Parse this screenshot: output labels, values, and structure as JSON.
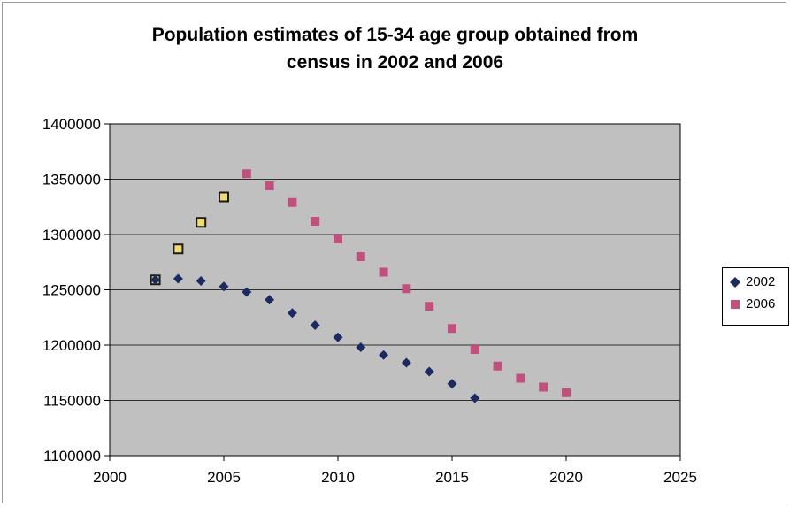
{
  "chart_data": {
    "type": "scatter",
    "title": [
      "Population estimates of 15-34 age group obtained from",
      "census in 2002 and 2006"
    ],
    "xlabel": "",
    "ylabel": "",
    "xlim": [
      2000,
      2025
    ],
    "ylim": [
      1100000,
      1400000
    ],
    "x_ticks": [
      "2000",
      "2005",
      "2010",
      "2015",
      "2020",
      "2025"
    ],
    "y_ticks": [
      "1100000",
      "1150000",
      "1200000",
      "1250000",
      "1300000",
      "1350000",
      "1400000"
    ],
    "grid": "horizontal",
    "plot_background": "#c0c0c0",
    "legend_position": "right",
    "series": [
      {
        "name": "2002",
        "marker": "diamond",
        "color": "#1c2a63",
        "x": [
          2002,
          2003,
          2004,
          2005,
          2006,
          2007,
          2008,
          2009,
          2010,
          2011,
          2012,
          2013,
          2014,
          2015,
          2016
        ],
        "y": [
          1259000,
          1260000,
          1258000,
          1253000,
          1248000,
          1241000,
          1229000,
          1218000,
          1207000,
          1198000,
          1191000,
          1184000,
          1176000,
          1165000,
          1152000
        ]
      },
      {
        "name": "2006",
        "marker": "square",
        "color": "#c0507e",
        "x": [
          2002,
          2003,
          2004,
          2005,
          2006,
          2007,
          2008,
          2009,
          2010,
          2011,
          2012,
          2013,
          2014,
          2015,
          2016,
          2017,
          2018,
          2019,
          2020
        ],
        "y": [
          1259000,
          1287000,
          1311000,
          1334000,
          1355000,
          1344000,
          1329000,
          1312000,
          1296000,
          1280000,
          1266000,
          1251000,
          1235000,
          1215000,
          1196000,
          1181000,
          1170000,
          1162000,
          1157000
        ]
      }
    ],
    "highlighted_points": {
      "series": "2006",
      "x": [
        2002,
        2003,
        2004,
        2005
      ],
      "color": "#f2dc6c"
    }
  }
}
